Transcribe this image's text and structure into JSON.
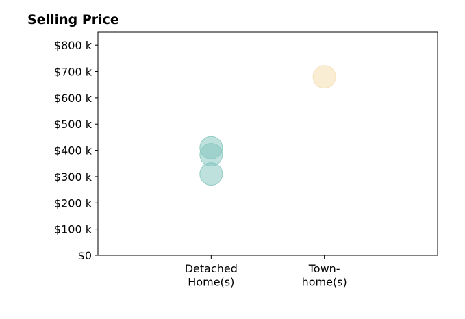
{
  "chart_data": {
    "type": "scatter",
    "title": "Selling Price",
    "xlabel": "",
    "ylabel": "",
    "categories": [
      "Detached Home(s)",
      "Town- home(s)"
    ],
    "category_label_lines": [
      [
        "Detached",
        "Home(s)"
      ],
      [
        "Town-",
        "home(s)"
      ]
    ],
    "xlim": [
      -1,
      2
    ],
    "ylim": [
      0,
      850
    ],
    "y_ticks": [
      0,
      100,
      200,
      300,
      400,
      500,
      600,
      700,
      800
    ],
    "y_tick_labels": [
      "$0",
      "$100 k",
      "$200 k",
      "$300 k",
      "$400 k",
      "$500 k",
      "$600 k",
      "$700 k",
      "$800 k"
    ],
    "grid": false,
    "series": [
      {
        "category": "Detached Home(s)",
        "color": "#7fc4bb",
        "points": [
          {
            "x": 0,
            "y": 410
          },
          {
            "x": 0,
            "y": 383
          },
          {
            "x": 0,
            "y": 310
          }
        ]
      },
      {
        "category": "Town- home(s)",
        "color": "#f4dcaa",
        "points": [
          {
            "x": 1,
            "y": 680
          }
        ]
      }
    ]
  }
}
